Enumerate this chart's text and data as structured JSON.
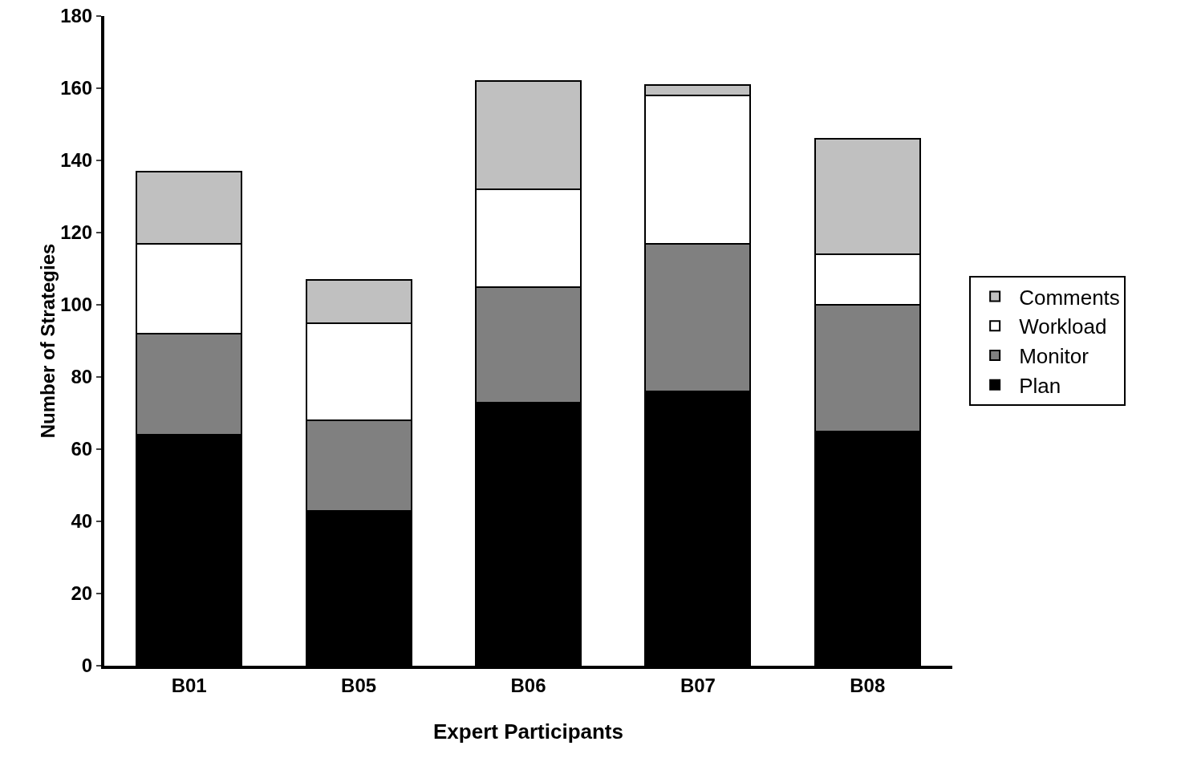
{
  "chart_data": {
    "type": "bar",
    "stacked": true,
    "categories": [
      "B01",
      "B05",
      "B06",
      "B07",
      "B08"
    ],
    "xlabel": "Expert Participants",
    "ylabel": "Number of Strategies",
    "ylim": [
      0,
      180
    ],
    "yticks": [
      0,
      20,
      40,
      60,
      80,
      100,
      120,
      140,
      160,
      180
    ],
    "grid": false,
    "legend": "right",
    "series": [
      {
        "name": "Plan",
        "color": "#000000",
        "values": [
          64,
          43,
          73,
          76,
          65
        ]
      },
      {
        "name": "Monitor",
        "color": "#808080",
        "values": [
          28,
          25,
          32,
          41,
          35
        ]
      },
      {
        "name": "Workload",
        "color": "#ffffff",
        "values": [
          25,
          27,
          27,
          41,
          14
        ]
      },
      {
        "name": "Comments",
        "color": "#c0c0c0",
        "values": [
          20,
          12,
          30,
          3,
          32
        ]
      }
    ]
  }
}
